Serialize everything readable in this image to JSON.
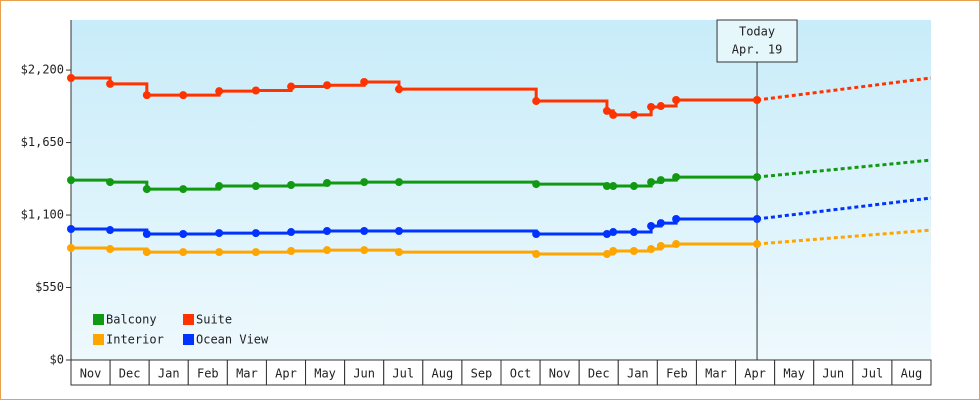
{
  "chart_data": {
    "type": "line",
    "x": [
      0,
      1.0,
      1.94,
      2.87,
      3.79,
      4.73,
      5.63,
      6.55,
      7.5,
      8.39,
      11.9,
      13.71,
      13.87,
      14.4,
      14.84,
      15.09,
      15.48,
      17.55,
      22
    ],
    "xlim": [
      0,
      22
    ],
    "xticks": [
      {
        "value": 0.5,
        "label": "Nov"
      },
      {
        "value": 1.5,
        "label": "Dec"
      },
      {
        "value": 2.5,
        "label": "Jan"
      },
      {
        "value": 3.5,
        "label": "Feb"
      },
      {
        "value": 4.5,
        "label": "Mar"
      },
      {
        "value": 5.5,
        "label": "Apr"
      },
      {
        "value": 6.5,
        "label": "May"
      },
      {
        "value": 7.5,
        "label": "Jun"
      },
      {
        "value": 8.5,
        "label": "Jul"
      },
      {
        "value": 9.5,
        "label": "Aug"
      },
      {
        "value": 10.5,
        "label": "Sep"
      },
      {
        "value": 11.5,
        "label": "Oct"
      },
      {
        "value": 12.5,
        "label": "Nov"
      },
      {
        "value": 13.5,
        "label": "Dec"
      },
      {
        "value": 14.5,
        "label": "Jan"
      },
      {
        "value": 15.5,
        "label": "Feb"
      },
      {
        "value": 16.5,
        "label": "Mar"
      },
      {
        "value": 17.5,
        "label": "Apr"
      },
      {
        "value": 18.5,
        "label": "May"
      },
      {
        "value": 19.5,
        "label": "Jun"
      },
      {
        "value": 20.5,
        "label": "Jul"
      },
      {
        "value": 21.5,
        "label": "Aug"
      }
    ],
    "ylim": [
      0,
      2580
    ],
    "yticks": [
      {
        "value": 0,
        "label": "$0"
      },
      {
        "value": 550,
        "label": "$550"
      },
      {
        "value": 1100,
        "label": "$1,100"
      },
      {
        "value": 1650,
        "label": "$1,650"
      },
      {
        "value": 2200,
        "label": "$2,200"
      }
    ],
    "today": {
      "x": 17.55,
      "label": "Today",
      "date": "Apr. 19"
    },
    "series": [
      {
        "name": "Balcony",
        "color": "#119911",
        "values": [
          1365,
          1350,
          1297,
          1297,
          1320,
          1320,
          1328,
          1343,
          1350,
          1350,
          1335,
          1320,
          1320,
          1320,
          1350,
          1365,
          1388,
          1388,
          1517
        ]
      },
      {
        "name": "Suite",
        "color": "#ff3300",
        "values": [
          2140,
          2095,
          2010,
          2010,
          2040,
          2045,
          2075,
          2085,
          2110,
          2055,
          1965,
          1890,
          1860,
          1860,
          1920,
          1927,
          1973,
          1973,
          2140
        ]
      },
      {
        "name": "Interior",
        "color": "#ffa500",
        "values": [
          850,
          842,
          819,
          819,
          819,
          819,
          827,
          834,
          834,
          819,
          804,
          804,
          827,
          827,
          842,
          865,
          880,
          880,
          986
        ]
      },
      {
        "name": "Ocean View",
        "color": "#0033ff",
        "values": [
          994,
          986,
          956,
          956,
          963,
          963,
          971,
          979,
          979,
          979,
          956,
          956,
          971,
          971,
          1017,
          1039,
          1070,
          1070,
          1229
        ]
      }
    ]
  }
}
